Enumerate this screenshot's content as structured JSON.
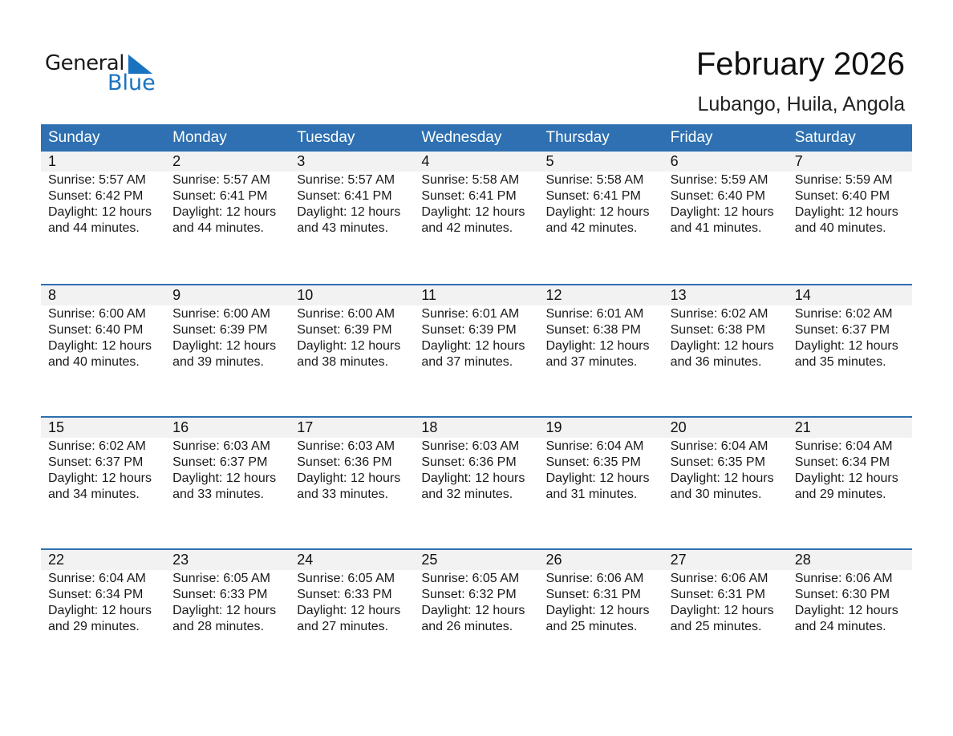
{
  "logo": {
    "text_general": "General",
    "text_blue": "Blue"
  },
  "title": "February 2026",
  "subtitle": "Lubango, Huila, Angola",
  "weekdays": [
    "Sunday",
    "Monday",
    "Tuesday",
    "Wednesday",
    "Thursday",
    "Friday",
    "Saturday"
  ],
  "colors": {
    "header": "#2e70b1",
    "day_band": "#f2f2f2",
    "logo_blue": "#1a73c0"
  },
  "days": [
    {
      "day": "1",
      "sunrise": "Sunrise: 5:57 AM",
      "sunset": "Sunset: 6:42 PM",
      "daylight": "Daylight: 12 hours",
      "minutes": "and 44 minutes."
    },
    {
      "day": "2",
      "sunrise": "Sunrise: 5:57 AM",
      "sunset": "Sunset: 6:41 PM",
      "daylight": "Daylight: 12 hours",
      "minutes": "and 44 minutes."
    },
    {
      "day": "3",
      "sunrise": "Sunrise: 5:57 AM",
      "sunset": "Sunset: 6:41 PM",
      "daylight": "Daylight: 12 hours",
      "minutes": "and 43 minutes."
    },
    {
      "day": "4",
      "sunrise": "Sunrise: 5:58 AM",
      "sunset": "Sunset: 6:41 PM",
      "daylight": "Daylight: 12 hours",
      "minutes": "and 42 minutes."
    },
    {
      "day": "5",
      "sunrise": "Sunrise: 5:58 AM",
      "sunset": "Sunset: 6:41 PM",
      "daylight": "Daylight: 12 hours",
      "minutes": "and 42 minutes."
    },
    {
      "day": "6",
      "sunrise": "Sunrise: 5:59 AM",
      "sunset": "Sunset: 6:40 PM",
      "daylight": "Daylight: 12 hours",
      "minutes": "and 41 minutes."
    },
    {
      "day": "7",
      "sunrise": "Sunrise: 5:59 AM",
      "sunset": "Sunset: 6:40 PM",
      "daylight": "Daylight: 12 hours",
      "minutes": "and 40 minutes."
    },
    {
      "day": "8",
      "sunrise": "Sunrise: 6:00 AM",
      "sunset": "Sunset: 6:40 PM",
      "daylight": "Daylight: 12 hours",
      "minutes": "and 40 minutes."
    },
    {
      "day": "9",
      "sunrise": "Sunrise: 6:00 AM",
      "sunset": "Sunset: 6:39 PM",
      "daylight": "Daylight: 12 hours",
      "minutes": "and 39 minutes."
    },
    {
      "day": "10",
      "sunrise": "Sunrise: 6:00 AM",
      "sunset": "Sunset: 6:39 PM",
      "daylight": "Daylight: 12 hours",
      "minutes": "and 38 minutes."
    },
    {
      "day": "11",
      "sunrise": "Sunrise: 6:01 AM",
      "sunset": "Sunset: 6:39 PM",
      "daylight": "Daylight: 12 hours",
      "minutes": "and 37 minutes."
    },
    {
      "day": "12",
      "sunrise": "Sunrise: 6:01 AM",
      "sunset": "Sunset: 6:38 PM",
      "daylight": "Daylight: 12 hours",
      "minutes": "and 37 minutes."
    },
    {
      "day": "13",
      "sunrise": "Sunrise: 6:02 AM",
      "sunset": "Sunset: 6:38 PM",
      "daylight": "Daylight: 12 hours",
      "minutes": "and 36 minutes."
    },
    {
      "day": "14",
      "sunrise": "Sunrise: 6:02 AM",
      "sunset": "Sunset: 6:37 PM",
      "daylight": "Daylight: 12 hours",
      "minutes": "and 35 minutes."
    },
    {
      "day": "15",
      "sunrise": "Sunrise: 6:02 AM",
      "sunset": "Sunset: 6:37 PM",
      "daylight": "Daylight: 12 hours",
      "minutes": "and 34 minutes."
    },
    {
      "day": "16",
      "sunrise": "Sunrise: 6:03 AM",
      "sunset": "Sunset: 6:37 PM",
      "daylight": "Daylight: 12 hours",
      "minutes": "and 33 minutes."
    },
    {
      "day": "17",
      "sunrise": "Sunrise: 6:03 AM",
      "sunset": "Sunset: 6:36 PM",
      "daylight": "Daylight: 12 hours",
      "minutes": "and 33 minutes."
    },
    {
      "day": "18",
      "sunrise": "Sunrise: 6:03 AM",
      "sunset": "Sunset: 6:36 PM",
      "daylight": "Daylight: 12 hours",
      "minutes": "and 32 minutes."
    },
    {
      "day": "19",
      "sunrise": "Sunrise: 6:04 AM",
      "sunset": "Sunset: 6:35 PM",
      "daylight": "Daylight: 12 hours",
      "minutes": "and 31 minutes."
    },
    {
      "day": "20",
      "sunrise": "Sunrise: 6:04 AM",
      "sunset": "Sunset: 6:35 PM",
      "daylight": "Daylight: 12 hours",
      "minutes": "and 30 minutes."
    },
    {
      "day": "21",
      "sunrise": "Sunrise: 6:04 AM",
      "sunset": "Sunset: 6:34 PM",
      "daylight": "Daylight: 12 hours",
      "minutes": "and 29 minutes."
    },
    {
      "day": "22",
      "sunrise": "Sunrise: 6:04 AM",
      "sunset": "Sunset: 6:34 PM",
      "daylight": "Daylight: 12 hours",
      "minutes": "and 29 minutes."
    },
    {
      "day": "23",
      "sunrise": "Sunrise: 6:05 AM",
      "sunset": "Sunset: 6:33 PM",
      "daylight": "Daylight: 12 hours",
      "minutes": "and 28 minutes."
    },
    {
      "day": "24",
      "sunrise": "Sunrise: 6:05 AM",
      "sunset": "Sunset: 6:33 PM",
      "daylight": "Daylight: 12 hours",
      "minutes": "and 27 minutes."
    },
    {
      "day": "25",
      "sunrise": "Sunrise: 6:05 AM",
      "sunset": "Sunset: 6:32 PM",
      "daylight": "Daylight: 12 hours",
      "minutes": "and 26 minutes."
    },
    {
      "day": "26",
      "sunrise": "Sunrise: 6:06 AM",
      "sunset": "Sunset: 6:31 PM",
      "daylight": "Daylight: 12 hours",
      "minutes": "and 25 minutes."
    },
    {
      "day": "27",
      "sunrise": "Sunrise: 6:06 AM",
      "sunset": "Sunset: 6:31 PM",
      "daylight": "Daylight: 12 hours",
      "minutes": "and 25 minutes."
    },
    {
      "day": "28",
      "sunrise": "Sunrise: 6:06 AM",
      "sunset": "Sunset: 6:30 PM",
      "daylight": "Daylight: 12 hours",
      "minutes": "and 24 minutes."
    }
  ]
}
